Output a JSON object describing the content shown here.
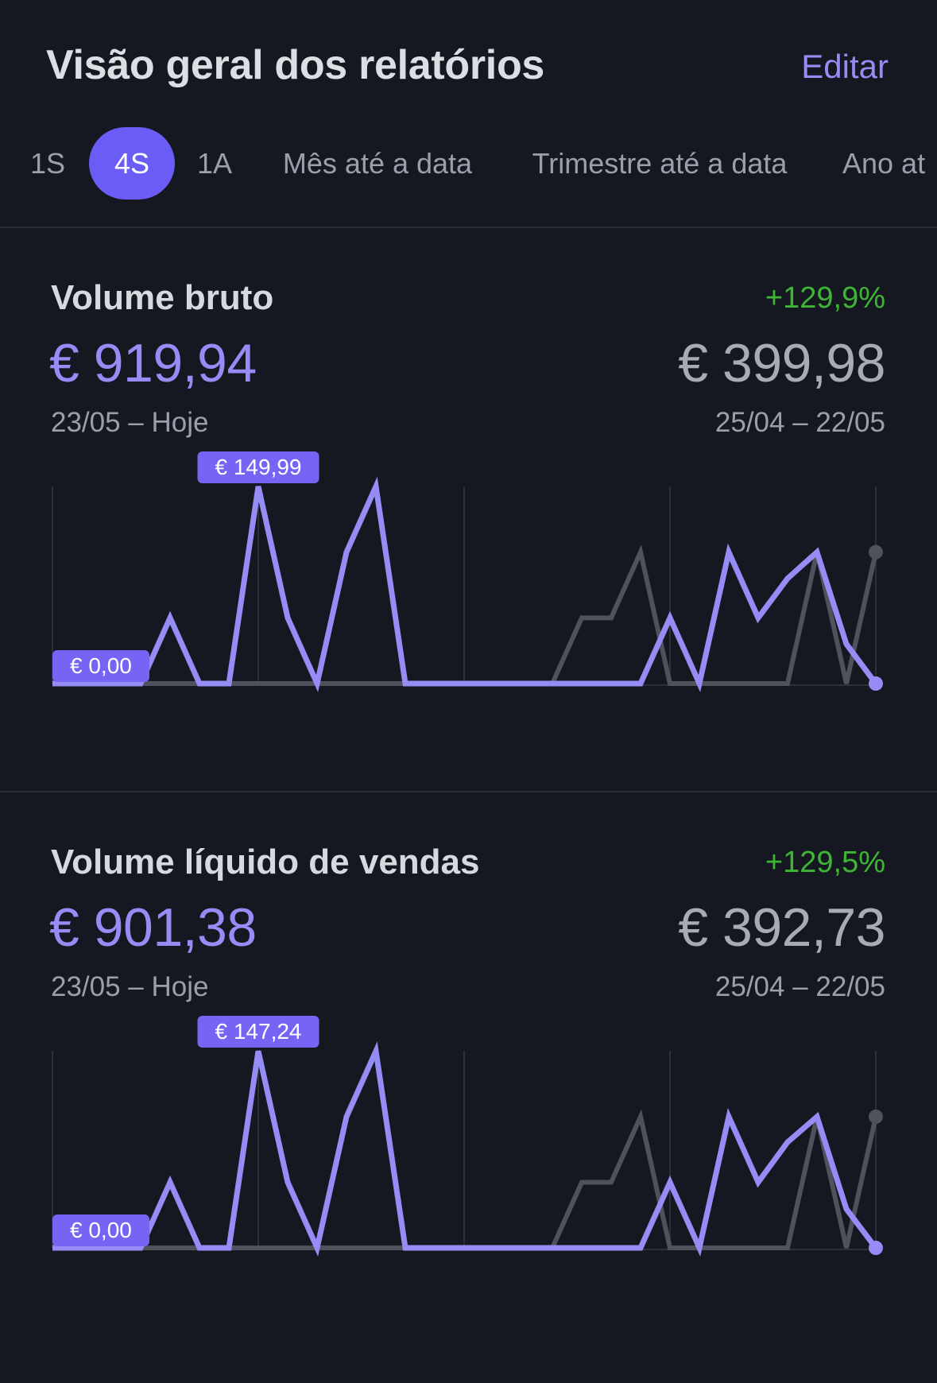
{
  "header": {
    "title": "Visão geral dos relatórios",
    "edit_label": "Editar"
  },
  "tabs": [
    {
      "label": "1S",
      "active": false
    },
    {
      "label": "4S",
      "active": true
    },
    {
      "label": "1A",
      "active": false
    },
    {
      "label": "Mês até a data",
      "active": false
    },
    {
      "label": "Trimestre até a data",
      "active": false
    },
    {
      "label": "Ano at",
      "active": false
    }
  ],
  "colors": {
    "accent": "#958cf5",
    "active_tab": "#6b5cf6",
    "positive": "#3fb536",
    "previous_series": "#4d525c",
    "background": "#151820"
  },
  "cards": [
    {
      "title": "Volume bruto",
      "change": "+129,9%",
      "value": "€ 919,94",
      "range": "23/05 – Hoje",
      "prev_value": "€ 399,98",
      "prev_range": "25/04 – 22/05",
      "max_label": "€ 149,99",
      "min_label": "€ 0,00"
    },
    {
      "title": "Volume líquido de vendas",
      "change": "+129,5%",
      "value": "€ 901,38",
      "range": "23/05 – Hoje",
      "prev_value": "€ 392,73",
      "prev_range": "25/04 – 22/05",
      "max_label": "€ 147,24",
      "min_label": "€ 0,00"
    }
  ],
  "chart_data": [
    {
      "type": "line",
      "x": [
        1,
        2,
        3,
        4,
        5,
        6,
        7,
        8,
        9,
        10,
        11,
        12,
        13,
        14,
        15,
        16,
        17,
        18,
        19,
        20,
        21,
        22,
        23,
        24,
        25,
        26,
        27,
        28,
        29
      ],
      "ylim": [
        0,
        149.99
      ],
      "grid": true,
      "series": [
        {
          "values": [
            0,
            0,
            0,
            0,
            50,
            0,
            0,
            150,
            50,
            0,
            100,
            150,
            0,
            0,
            0,
            0,
            0,
            0,
            0,
            0,
            0,
            50,
            0,
            100,
            50,
            80,
            100,
            30,
            0
          ]
        },
        {
          "values": [
            0,
            0,
            0,
            0,
            0,
            0,
            0,
            0,
            0,
            0,
            0,
            0,
            0,
            0,
            0,
            0,
            0,
            0,
            50,
            50,
            100,
            0,
            0,
            0,
            0,
            0,
            100,
            0,
            100
          ]
        }
      ],
      "annotations": [
        "€ 149,99",
        "€ 0,00"
      ]
    },
    {
      "type": "line",
      "x": [
        1,
        2,
        3,
        4,
        5,
        6,
        7,
        8,
        9,
        10,
        11,
        12,
        13,
        14,
        15,
        16,
        17,
        18,
        19,
        20,
        21,
        22,
        23,
        24,
        25,
        26,
        27,
        28,
        29
      ],
      "ylim": [
        0,
        147.24
      ],
      "grid": true,
      "series": [
        {
          "values": [
            0,
            0,
            0,
            0,
            49,
            0,
            0,
            147,
            49,
            0,
            98,
            147,
            0,
            0,
            0,
            0,
            0,
            0,
            0,
            0,
            0,
            49,
            0,
            98,
            49,
            79,
            98,
            29,
            0
          ]
        },
        {
          "values": [
            0,
            0,
            0,
            0,
            0,
            0,
            0,
            0,
            0,
            0,
            0,
            0,
            0,
            0,
            0,
            0,
            0,
            0,
            49,
            49,
            98,
            0,
            0,
            0,
            0,
            0,
            98,
            0,
            98
          ]
        }
      ],
      "annotations": [
        "€ 147,24",
        "€ 0,00"
      ]
    }
  ]
}
